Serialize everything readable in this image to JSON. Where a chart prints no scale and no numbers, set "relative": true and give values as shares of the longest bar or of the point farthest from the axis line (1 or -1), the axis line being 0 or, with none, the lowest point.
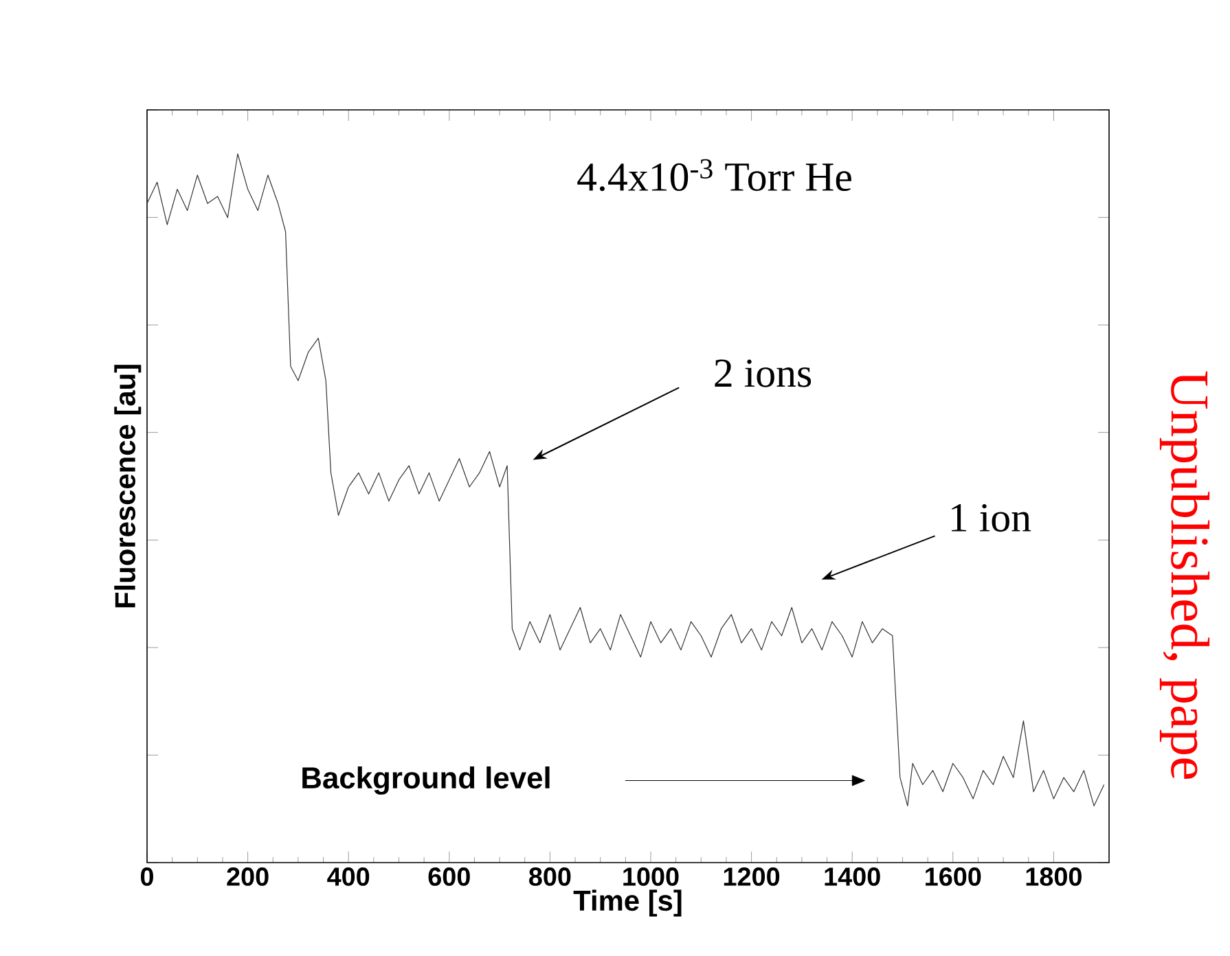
{
  "chart_data": {
    "type": "line",
    "relative": true,
    "title": "4.4x10$^{-3}$ Torr He",
    "xlabel": "Time [s]",
    "ylabel": "Fluorescence [au]",
    "xlim": [
      0,
      1910
    ],
    "xticks": [
      0,
      200,
      400,
      600,
      800,
      1000,
      1200,
      1400,
      1600,
      1800
    ],
    "tick_labels": "x",
    "series": [
      {
        "color": "#333333",
        "x": [
          0,
          20,
          40,
          60,
          80,
          100,
          120,
          140,
          160,
          180,
          200,
          220,
          240,
          260,
          275,
          285,
          300,
          320,
          340,
          355,
          365,
          380,
          400,
          420,
          440,
          460,
          480,
          500,
          520,
          540,
          560,
          580,
          600,
          620,
          640,
          660,
          680,
          700,
          715,
          725,
          740,
          760,
          780,
          800,
          820,
          840,
          860,
          880,
          900,
          920,
          940,
          960,
          980,
          1000,
          1020,
          1040,
          1060,
          1080,
          1100,
          1120,
          1140,
          1160,
          1180,
          1200,
          1220,
          1240,
          1260,
          1280,
          1300,
          1320,
          1340,
          1360,
          1380,
          1400,
          1420,
          1440,
          1460,
          1480,
          1495,
          1510,
          1520,
          1540,
          1560,
          1580,
          1600,
          1620,
          1640,
          1660,
          1680,
          1700,
          1720,
          1740,
          1760,
          1780,
          1800,
          1820,
          1840,
          1860,
          1880,
          1900
        ],
        "values": [
          0.93,
          0.96,
          0.9,
          0.95,
          0.92,
          0.97,
          0.93,
          0.94,
          0.91,
          1.0,
          0.95,
          0.92,
          0.97,
          0.93,
          0.89,
          0.7,
          0.68,
          0.72,
          0.74,
          0.68,
          0.55,
          0.49,
          0.53,
          0.55,
          0.52,
          0.55,
          0.51,
          0.54,
          0.56,
          0.52,
          0.55,
          0.51,
          0.54,
          0.57,
          0.53,
          0.55,
          0.58,
          0.53,
          0.56,
          0.33,
          0.3,
          0.34,
          0.31,
          0.35,
          0.3,
          0.33,
          0.36,
          0.31,
          0.33,
          0.3,
          0.35,
          0.32,
          0.29,
          0.34,
          0.31,
          0.33,
          0.3,
          0.34,
          0.32,
          0.29,
          0.33,
          0.35,
          0.31,
          0.33,
          0.3,
          0.34,
          0.32,
          0.36,
          0.31,
          0.33,
          0.3,
          0.34,
          0.32,
          0.29,
          0.34,
          0.31,
          0.33,
          0.32,
          0.12,
          0.08,
          0.14,
          0.11,
          0.13,
          0.1,
          0.14,
          0.12,
          0.09,
          0.13,
          0.11,
          0.15,
          0.12,
          0.2,
          0.1,
          0.13,
          0.09,
          0.12,
          0.1,
          0.13,
          0.08,
          0.11
        ]
      }
    ],
    "annotations": [
      "2 ions",
      "1 ion",
      "Background level",
      "Unpublished, pape"
    ]
  }
}
